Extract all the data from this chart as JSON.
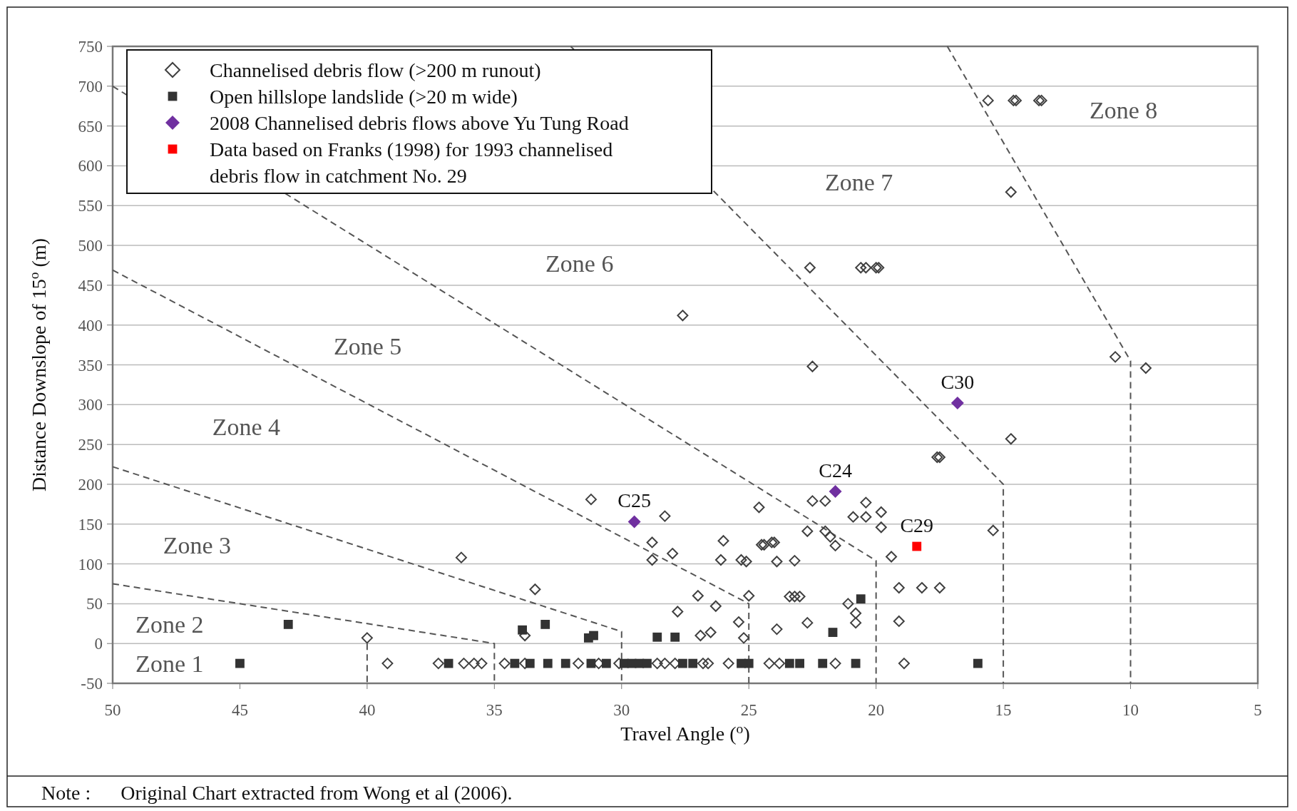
{
  "chart_data": {
    "type": "scatter",
    "xlabel": "Travel Angle ($^{o}$)",
    "ylabel": "Distance Downslope of 15$^{o}$ (m)",
    "xlim": [
      50,
      5
    ],
    "ylim": [
      -50,
      750
    ],
    "xticks": [
      50,
      45,
      40,
      35,
      30,
      25,
      20,
      15,
      10,
      5
    ],
    "yticks": [
      -50,
      0,
      50,
      100,
      150,
      200,
      250,
      300,
      350,
      400,
      450,
      500,
      550,
      600,
      650,
      700,
      750
    ],
    "grid": "y",
    "legend": "top left",
    "series": [
      {
        "name": "Channelised debris flow (>200 m runout)",
        "color": "#404040",
        "marker": "diamond",
        "x": [
          15.6,
          14.6,
          14.5,
          13.6,
          13.5,
          14.7,
          10.6,
          9.4,
          14.7,
          22.6,
          20.6,
          20.4,
          20.0,
          19.9,
          27.6,
          22.5,
          17.6,
          17.5,
          15.4,
          31.2,
          28.3,
          28.8,
          28.8,
          28.0,
          26.0,
          26.1,
          25.3,
          25.1,
          24.6,
          24.5,
          24.4,
          24.1,
          24.0,
          23.9,
          23.2,
          22.5,
          22.0,
          22.7,
          22.0,
          21.8,
          21.6,
          20.9,
          20.4,
          20.4,
          19.8,
          19.8,
          19.4,
          19.1,
          18.2,
          17.5,
          36.3,
          33.4,
          27.0,
          25.0,
          26.3,
          27.8,
          25.4,
          26.9,
          26.5,
          25.2,
          23.9,
          23.4,
          23.2,
          23.0,
          22.7,
          21.1,
          20.8,
          20.8,
          19.1,
          40.0,
          33.8,
          39.2,
          37.2,
          36.2,
          35.8,
          35.5,
          34.6,
          33.8,
          31.7,
          30.9,
          30.1,
          28.6,
          28.3,
          27.9,
          26.8,
          26.6,
          25.8,
          24.2,
          23.8,
          21.6,
          18.9
        ],
        "values": [
          682,
          682,
          682,
          682,
          682,
          567,
          360,
          346,
          257,
          472,
          472,
          472,
          472,
          472,
          412,
          348,
          234,
          234,
          142,
          181,
          160,
          127,
          105,
          113,
          129,
          105,
          105,
          103,
          171,
          124,
          124,
          127,
          127,
          103,
          104,
          179,
          179,
          141,
          141,
          134,
          123,
          159,
          177,
          159,
          165,
          146,
          109,
          70,
          70,
          70,
          108,
          68,
          60,
          60,
          47,
          40,
          27,
          10,
          14,
          7,
          18,
          59,
          59,
          59,
          26,
          50,
          38,
          26,
          28,
          7,
          10,
          -25,
          -25,
          -25,
          -25,
          -25,
          -25,
          -25,
          -25,
          -25,
          -25,
          -25,
          -25,
          -25,
          -25,
          -25,
          -25,
          -25,
          -25,
          -25,
          -25
        ]
      },
      {
        "name": "Open hillslope landslide (>20 m wide)",
        "color": "#333333",
        "marker": "square",
        "x": [
          43.1,
          33.9,
          33.0,
          31.3,
          31.1,
          28.6,
          27.9,
          20.6,
          21.7,
          45.0,
          36.8,
          34.2,
          33.6,
          32.9,
          32.2,
          31.2,
          30.6,
          29.9,
          29.6,
          29.3,
          29.0,
          27.6,
          27.2,
          25.3,
          25.0,
          23.4,
          23.0,
          22.1,
          20.8,
          16.0
        ],
        "values": [
          24,
          17,
          24,
          7,
          10,
          8,
          8,
          56,
          14,
          -25,
          -25,
          -25,
          -25,
          -25,
          -25,
          -25,
          -25,
          -25,
          -25,
          -25,
          -25,
          -25,
          -25,
          -25,
          -25,
          -25,
          -25,
          -25,
          -25,
          -25
        ]
      },
      {
        "name": "2008 Channelised debris flows above Yu Tung Road",
        "color": "#7030a0",
        "marker": "diamond",
        "x": [
          29.5,
          21.6,
          16.8
        ],
        "values": [
          153,
          191,
          302
        ]
      },
      {
        "name": "Data based on Franks (1998) for 1993 channelised debris flow in catchment No. 29",
        "color": "#ff0000",
        "marker": "square",
        "x": [
          18.4
        ],
        "values": [
          122
        ]
      },
      {
        "type": "line",
        "color": "#555555",
        "line_style": "dashed",
        "marker": "none",
        "x": [
          50,
          35,
          35
        ],
        "values": [
          75,
          0,
          -50
        ]
      },
      {
        "type": "line",
        "color": "#555555",
        "line_style": "dashed",
        "marker": "none",
        "x": [
          40,
          40
        ],
        "values": [
          0,
          -50
        ]
      },
      {
        "type": "line",
        "color": "#555555",
        "line_style": "dashed",
        "marker": "none",
        "x": [
          50,
          30,
          30
        ],
        "values": [
          222,
          15,
          -50
        ]
      },
      {
        "type": "line",
        "color": "#555555",
        "line_style": "dashed",
        "marker": "none",
        "x": [
          50,
          25,
          25
        ],
        "values": [
          469,
          50,
          -50
        ]
      },
      {
        "type": "line",
        "color": "#555555",
        "line_style": "dashed",
        "marker": "none",
        "x": [
          50,
          20,
          20
        ],
        "values": [
          700,
          104,
          -50
        ]
      },
      {
        "type": "line",
        "color": "#555555",
        "line_style": "dashed",
        "marker": "none",
        "x": [
          32,
          15,
          15
        ],
        "values": [
          750,
          200,
          -50
        ]
      },
      {
        "type": "line",
        "color": "#555555",
        "line_style": "dashed",
        "marker": "none",
        "x": [
          17.2,
          10,
          10
        ],
        "values": [
          750,
          355,
          -50
        ]
      }
    ],
    "annotations": [
      "Zone 1",
      "Zone 2",
      "Zone 3",
      "Zone 4",
      "Zone 5",
      "Zone 6",
      "Zone 7",
      "Zone 8",
      {
        "text": "C25",
        "x": 29.5,
        "y": 153
      },
      {
        "text": "C24",
        "x": 21.6,
        "y": 191
      },
      {
        "text": "C30",
        "x": 16.8,
        "y": 302
      },
      {
        "text": "C29",
        "x": 18.4,
        "y": 122
      },
      "Note :      Original Chart extracted from Wong et al (2006)."
    ]
  }
}
